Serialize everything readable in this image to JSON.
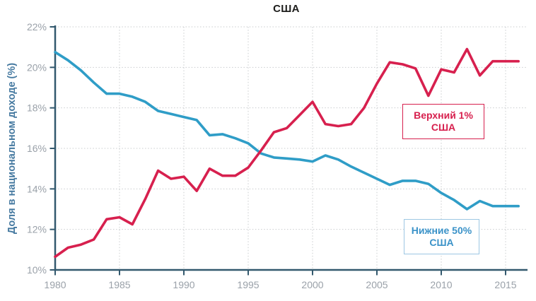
{
  "title": "США",
  "y_axis": {
    "label": "Доля в национальном доходе (%)",
    "tick_suffix": "%"
  },
  "legend": {
    "top1": {
      "line1": "Верхний 1%",
      "line2": "США"
    },
    "bottom50": {
      "line1": "Нижние 50%",
      "line2": "США"
    }
  },
  "colors": {
    "top1_line": "#d7204e",
    "bottom50_line": "#2f9dc7",
    "axis": "#33596e",
    "tick_text": "#9aa1a9",
    "grid": "#c9ccce",
    "title_text": "#1d1d1b",
    "y_axis_label_text": "#4579a0",
    "legend_top1_text": "#d7204e",
    "legend_top1_border": "#d7204e",
    "legend_bottom50_text": "#3a92c8",
    "legend_bottom50_border": "#9dc7e3"
  },
  "chart_data": {
    "type": "line",
    "title": "США",
    "xlabel": "",
    "ylabel": "Доля в национальном доходе (%)",
    "ylim": [
      10,
      22
    ],
    "xlim": [
      1980,
      2016
    ],
    "y_ticks": [
      10,
      12,
      14,
      16,
      18,
      20,
      22
    ],
    "x_ticks": [
      1980,
      1985,
      1990,
      1995,
      2000,
      2005,
      2010,
      2015
    ],
    "grid": "dotted",
    "legend_position": "inset boxes right",
    "x": [
      1980,
      1981,
      1982,
      1983,
      1984,
      1985,
      1986,
      1987,
      1988,
      1989,
      1990,
      1991,
      1992,
      1993,
      1994,
      1995,
      1996,
      1997,
      1998,
      1999,
      2000,
      2001,
      2002,
      2003,
      2004,
      2005,
      2006,
      2007,
      2008,
      2009,
      2010,
      2011,
      2012,
      2013,
      2014,
      2015,
      2016
    ],
    "series": [
      {
        "name": "Верхний 1% США",
        "color": "#d7204e",
        "values": [
          10.65,
          11.1,
          11.25,
          11.5,
          12.5,
          12.6,
          12.25,
          13.5,
          14.9,
          14.5,
          14.6,
          13.9,
          15.0,
          14.65,
          14.65,
          15.05,
          15.9,
          16.8,
          17.0,
          17.65,
          18.3,
          17.2,
          17.1,
          17.2,
          18.0,
          19.2,
          20.25,
          20.15,
          19.95,
          18.6,
          19.9,
          19.75,
          20.9,
          19.6,
          20.3,
          20.3,
          20.3
        ]
      },
      {
        "name": "Нижние 50% США",
        "color": "#2f9dc7",
        "values": [
          20.75,
          20.35,
          19.85,
          19.25,
          18.7,
          18.7,
          18.55,
          18.3,
          17.85,
          17.7,
          17.55,
          17.4,
          16.65,
          16.7,
          16.5,
          16.25,
          15.75,
          15.55,
          15.5,
          15.45,
          15.35,
          15.65,
          15.45,
          15.1,
          14.8,
          14.5,
          14.2,
          14.4,
          14.4,
          14.25,
          13.8,
          13.45,
          13.0,
          13.4,
          13.15,
          13.15,
          13.15
        ]
      }
    ]
  }
}
